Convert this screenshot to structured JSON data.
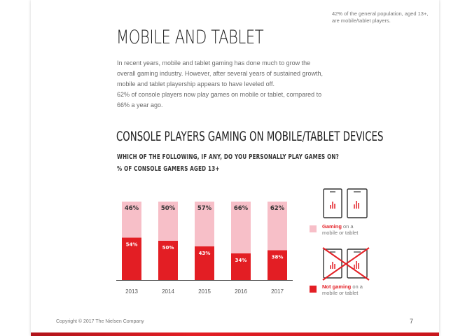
{
  "header": {
    "sidenote": "42% of the general population, aged 13+, are mobile/tablet players."
  },
  "page_title": "MOBILE AND TABLET",
  "intro": [
    "In recent years, mobile and tablet gaming has done much to grow the overall gaming industry. However, after several years of sustained growth, mobile and tablet playership appears to have leveled off.",
    "62% of console players now play games on mobile or tablet, compared to 66% a year ago."
  ],
  "chart_data": {
    "type": "bar",
    "stacked": true,
    "title": "CONSOLE PLAYERS GAMING ON MOBILE/TABLET DEVICES",
    "question": "WHICH OF THE FOLLOWING, IF ANY, DO YOU PERSONALLY PLAY GAMES ON?",
    "subtitle": "% OF CONSOLE GAMERS AGED 13+",
    "categories": [
      "2013",
      "2014",
      "2015",
      "2016",
      "2017"
    ],
    "series": [
      {
        "name": "Not gaming on a mobile or tablet",
        "values": [
          54,
          50,
          43,
          34,
          38
        ],
        "labels": [
          "54%",
          "50%",
          "43%",
          "34%",
          "38%"
        ],
        "color": "#e31e24"
      },
      {
        "name": "Gaming on a mobile or tablet",
        "values": [
          46,
          50,
          57,
          66,
          62
        ],
        "labels": [
          "46%",
          "50%",
          "57%",
          "66%",
          "62%"
        ],
        "color": "#f7bfc8"
      }
    ],
    "ylim": [
      0,
      100
    ],
    "grid": false,
    "legend_placement": "right"
  },
  "legend": {
    "gaming_bold": "Gaming",
    "gaming_rest_1": " on a",
    "gaming_rest_2": "mobile or tablet",
    "not_gaming_bold": "Not gaming",
    "not_gaming_rest_1": " on a",
    "not_gaming_rest_2": "mobile or tablet",
    "colors": {
      "gaming": "#f7bfc8",
      "not_gaming": "#e31e24"
    },
    "icons": [
      "phone-tablet-icon",
      "phone-tablet-crossed-icon"
    ]
  },
  "footer": {
    "copyright": "Copyright © 2017 The Nielsen Company",
    "page_number": "7"
  }
}
